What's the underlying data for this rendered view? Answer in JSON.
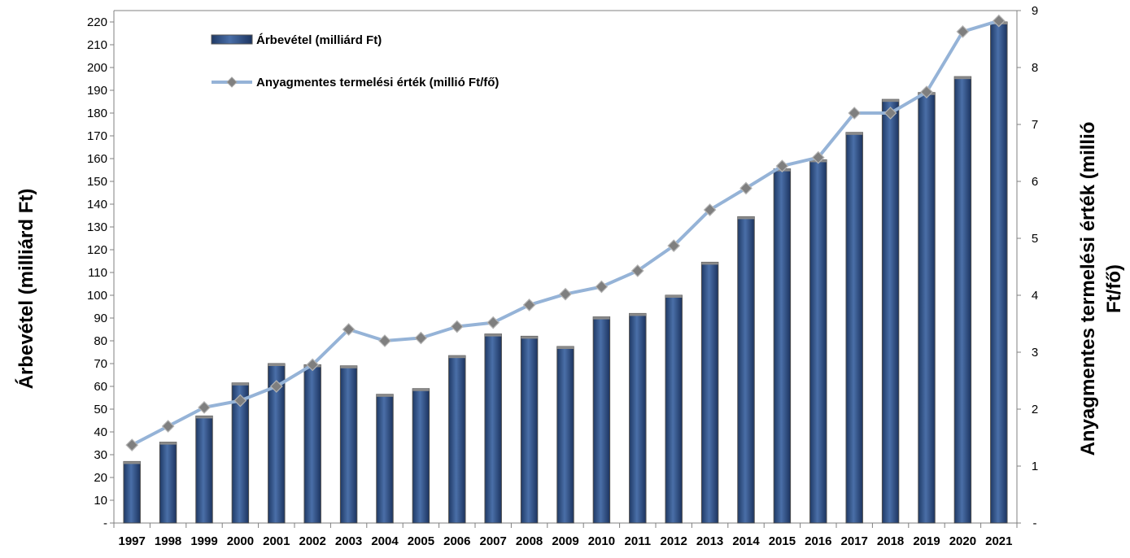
{
  "chart_data": {
    "type": "bar",
    "categories": [
      "1997",
      "1998",
      "1999",
      "2000",
      "2001",
      "2002",
      "2003",
      "2004",
      "2005",
      "2006",
      "2007",
      "2008",
      "2009",
      "2010",
      "2011",
      "2012",
      "2013",
      "2014",
      "2015",
      "2016",
      "2017",
      "2018",
      "2019",
      "2020",
      "2021"
    ],
    "series": [
      {
        "name": "Árbevétel (milliárd Ft)",
        "type": "bar",
        "axis": "left",
        "color": "#3a5a8c",
        "values": [
          27,
          35.5,
          47,
          61.5,
          70,
          69.5,
          69,
          56.5,
          59,
          73.5,
          83,
          82,
          77.5,
          90.5,
          92,
          100,
          114.5,
          134.5,
          155.5,
          159.5,
          171.5,
          186,
          189,
          196,
          220
        ]
      },
      {
        "name": "Anyagmentes termelési érték (millió Ft/fő)",
        "type": "line",
        "axis": "right",
        "color": "#95b3d7",
        "values": [
          1.37,
          1.7,
          2.03,
          2.15,
          2.4,
          2.78,
          3.4,
          3.2,
          3.25,
          3.45,
          3.52,
          3.83,
          4.02,
          4.15,
          4.43,
          4.87,
          5.5,
          5.88,
          6.27,
          6.42,
          7.2,
          7.2,
          7.57,
          8.63,
          8.82
        ]
      }
    ],
    "y_left": {
      "label": "Árbevétel (milliárd Ft)",
      "min": 0,
      "max": 225,
      "step": 10,
      "tick_labels": [
        "-",
        "10",
        "20",
        "30",
        "40",
        "50",
        "60",
        "70",
        "80",
        "90",
        "100",
        "110",
        "120",
        "130",
        "140",
        "150",
        "160",
        "170",
        "180",
        "190",
        "200",
        "210",
        "220"
      ]
    },
    "y_right": {
      "label_line1": "Anyagmentes termelési érték (millió",
      "label_line2": "Ft/fő)",
      "min": 0,
      "max": 9,
      "step": 1,
      "tick_labels": [
        "-",
        "1",
        "2",
        "3",
        "4",
        "5",
        "6",
        "7",
        "8",
        "9"
      ]
    },
    "grid": false,
    "legend": {
      "position": "top-left"
    }
  }
}
